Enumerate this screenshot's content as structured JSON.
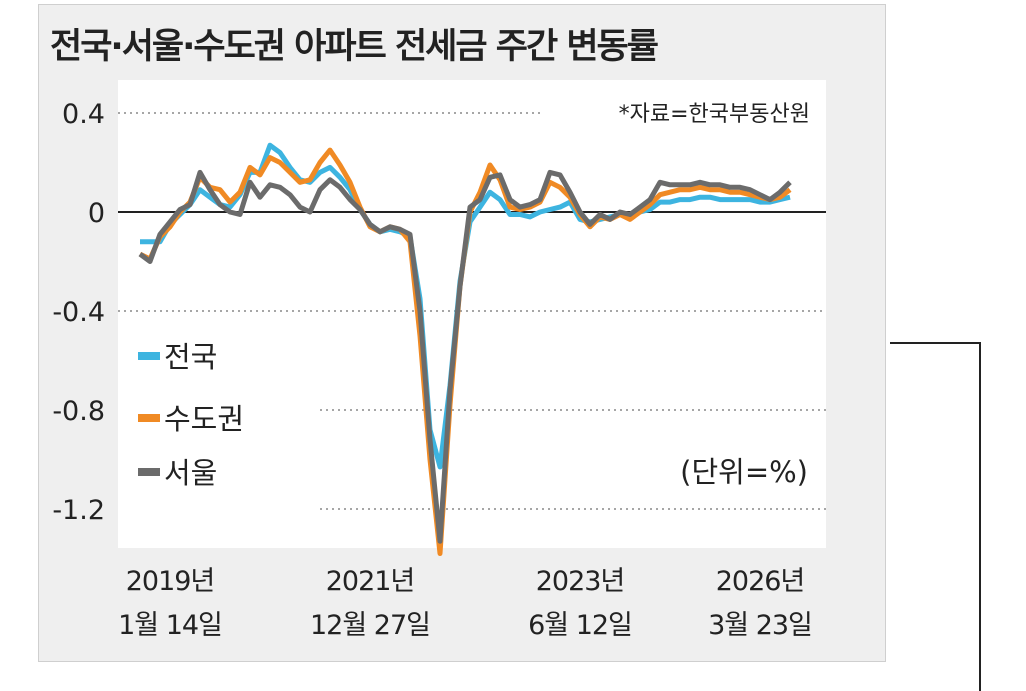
{
  "title": "전국·서울·수도권 아파트 전세금 주간 변동률",
  "source": "*자료=한국부동산원",
  "unit": "(단위=%)",
  "colors": {
    "전국": "#3db4e0",
    "수도권": "#f08a24",
    "서울": "#6b6b6b"
  },
  "chart_data": {
    "type": "line",
    "title": "전국·서울·수도권 아파트 전세금 주간 변동률",
    "ylim": [
      -1.4,
      0.5
    ],
    "yticks": [
      0.4,
      0,
      -0.4,
      -0.8,
      -1.2
    ],
    "ytick_labels": [
      "0.4",
      "0",
      "-0.4",
      "-0.8",
      "-1.2"
    ],
    "grid": "dotted horizontal",
    "legend": "left-middle",
    "x_ticks": [
      {
        "index": 3,
        "line1": "2019년",
        "line2": "1월 14일"
      },
      {
        "index": 23,
        "line1": "2021년",
        "line2": "12월 27일"
      },
      {
        "index": 44,
        "line1": "2023년",
        "line2": "6월 12일"
      },
      {
        "index": 62,
        "line1": "2026년",
        "line2": "3월 23일"
      }
    ],
    "series": [
      {
        "name": "전국",
        "values": [
          -0.12,
          -0.12,
          -0.12,
          -0.05,
          -0.01,
          0.03,
          0.09,
          0.06,
          0.03,
          0.02,
          0.07,
          0.16,
          0.16,
          0.27,
          0.24,
          0.18,
          0.13,
          0.12,
          0.16,
          0.18,
          0.14,
          0.09,
          0.01,
          -0.05,
          -0.08,
          -0.07,
          -0.08,
          -0.1,
          -0.35,
          -0.88,
          -1.03,
          -0.7,
          -0.28,
          -0.04,
          0.02,
          0.08,
          0.05,
          -0.01,
          -0.01,
          -0.02,
          0.0,
          0.01,
          0.02,
          0.04,
          -0.03,
          -0.04,
          -0.03,
          -0.02,
          -0.01,
          -0.01,
          0.0,
          0.01,
          0.04,
          0.04,
          0.05,
          0.05,
          0.06,
          0.06,
          0.05,
          0.05,
          0.05,
          0.05,
          0.04,
          0.04,
          0.05,
          0.06
        ]
      },
      {
        "name": "수도권",
        "values": [
          -0.17,
          -0.19,
          -0.1,
          -0.06,
          0.0,
          0.04,
          0.14,
          0.1,
          0.09,
          0.04,
          0.08,
          0.18,
          0.15,
          0.22,
          0.2,
          0.16,
          0.12,
          0.13,
          0.2,
          0.25,
          0.19,
          0.12,
          0.02,
          -0.06,
          -0.08,
          -0.06,
          -0.07,
          -0.12,
          -0.5,
          -1.0,
          -1.38,
          -0.78,
          -0.3,
          0.0,
          0.08,
          0.19,
          0.13,
          0.02,
          0.01,
          0.02,
          0.04,
          0.12,
          0.1,
          0.06,
          -0.01,
          -0.06,
          -0.02,
          -0.03,
          -0.01,
          -0.03,
          0.0,
          0.03,
          0.07,
          0.08,
          0.09,
          0.09,
          0.1,
          0.09,
          0.09,
          0.08,
          0.08,
          0.07,
          0.06,
          0.05,
          0.06,
          0.09
        ]
      },
      {
        "name": "서울",
        "values": [
          -0.17,
          -0.2,
          -0.09,
          -0.04,
          0.01,
          0.03,
          0.16,
          0.09,
          0.03,
          0.0,
          -0.01,
          0.12,
          0.06,
          0.11,
          0.1,
          0.07,
          0.02,
          0.0,
          0.09,
          0.13,
          0.1,
          0.05,
          0.01,
          -0.05,
          -0.08,
          -0.06,
          -0.07,
          -0.09,
          -0.4,
          -0.92,
          -1.33,
          -0.72,
          -0.3,
          0.02,
          0.05,
          0.14,
          0.15,
          0.05,
          0.02,
          0.03,
          0.05,
          0.16,
          0.15,
          0.08,
          0.0,
          -0.05,
          -0.01,
          -0.03,
          0.0,
          -0.01,
          0.02,
          0.05,
          0.12,
          0.11,
          0.11,
          0.11,
          0.12,
          0.11,
          0.11,
          0.1,
          0.1,
          0.09,
          0.07,
          0.05,
          0.08,
          0.12
        ]
      }
    ]
  }
}
